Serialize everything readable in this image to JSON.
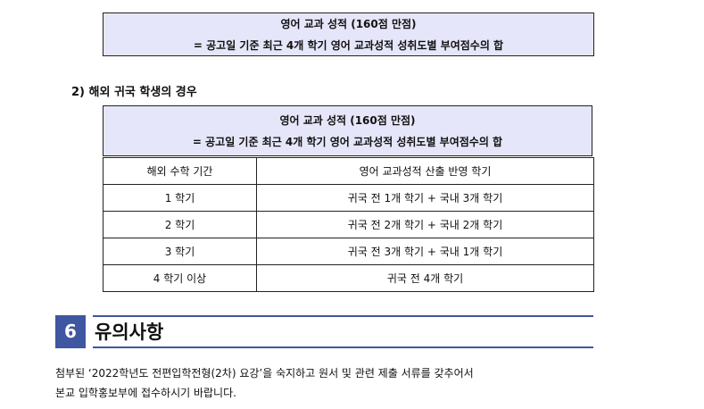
{
  "top_box": {
    "line1": "영어 교과 성적 (160점 만점)",
    "line2": "= 공고일 기준 최근 4개 학기 영어 교과성적 성취도별 부여점수의 합"
  },
  "heading": "2) 해외 귀국 학생의 경우",
  "table": {
    "caption_line1": "영어 교과 성적 (160점 만점)",
    "caption_line2": "= 공고일 기준 최근 4개 학기 영어 교과성적 성취도별 부여점수의 합",
    "headers": [
      "해외 수학 기간",
      "영어 교과성적 산출 반영 학기"
    ],
    "rows": [
      [
        "1 학기",
        "귀국 전 1개 학기 + 국내 3개 학기"
      ],
      [
        "2 학기",
        "귀국 전 2개 학기 + 국내 2개 학기"
      ],
      [
        "3 학기",
        "귀국 전 3개 학기 + 국내 1개 학기"
      ],
      [
        "4 학기 이상",
        "귀국 전 4개 학기"
      ]
    ]
  },
  "section": {
    "number": "6",
    "title": "유의사항"
  },
  "body": {
    "line1": "첨부된 ‘2022학년도 전편입학전형(2차) 요강’을 숙지하고 원서 및 관련 제출 서류를 갖추어서",
    "line2": "본교 입학홍보부에 접수하시기 바랍니다."
  }
}
